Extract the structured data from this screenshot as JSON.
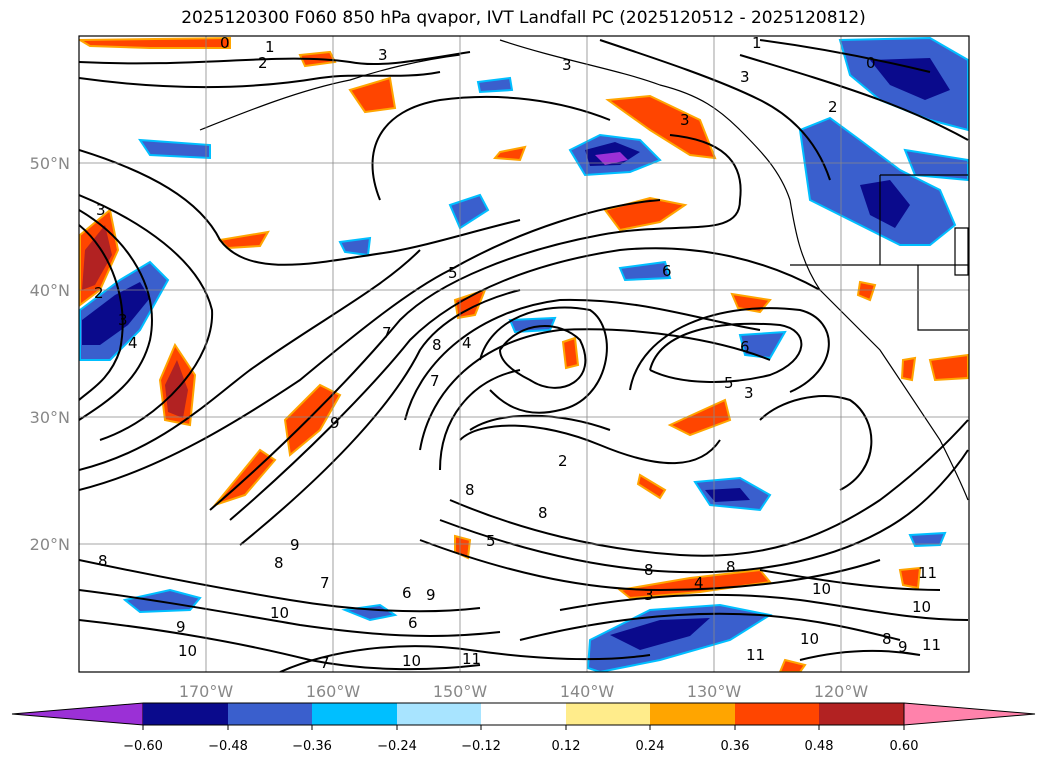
{
  "title": "2025120300 F060 850 hPa qvapor, IVT Landfall PC (2025120512 - 2025120812)",
  "map": {
    "lat_labels": [
      "50°N",
      "40°N",
      "30°N",
      "20°N"
    ],
    "lon_labels": [
      "170°W",
      "160°W",
      "150°W",
      "140°W",
      "130°W",
      "120°W"
    ],
    "contour_labels": [
      "0",
      "1",
      "2",
      "3",
      "3",
      "3",
      "1",
      "3",
      "2",
      "0",
      "2",
      "3",
      "4",
      "3",
      "5",
      "6",
      "7",
      "8",
      "4",
      "7",
      "6",
      "5",
      "3",
      "9",
      "8",
      "2",
      "8",
      "5",
      "8",
      "9",
      "8",
      "7",
      "10",
      "6",
      "9",
      "10",
      "7",
      "10",
      "11",
      "9",
      "11",
      "8",
      "4",
      "3",
      "8",
      "10",
      "10",
      "8",
      "9",
      "10",
      "11",
      "11",
      "6"
    ],
    "colors": {
      "land_border": "#000000",
      "grid": "#888888"
    }
  },
  "colorbar": {
    "colors": [
      "#9b30d6",
      "#0a0a8c",
      "#3a5fcd",
      "#00bfff",
      "#a8e4ff",
      "#ffffff",
      "#ffec8b",
      "#ffa500",
      "#ff4500",
      "#b22222",
      "#ff82ab"
    ],
    "tick_labels": [
      "−0.60",
      "−0.48",
      "−0.36",
      "−0.24",
      "−0.12",
      "0.12",
      "0.24",
      "0.36",
      "0.48",
      "0.60"
    ]
  }
}
